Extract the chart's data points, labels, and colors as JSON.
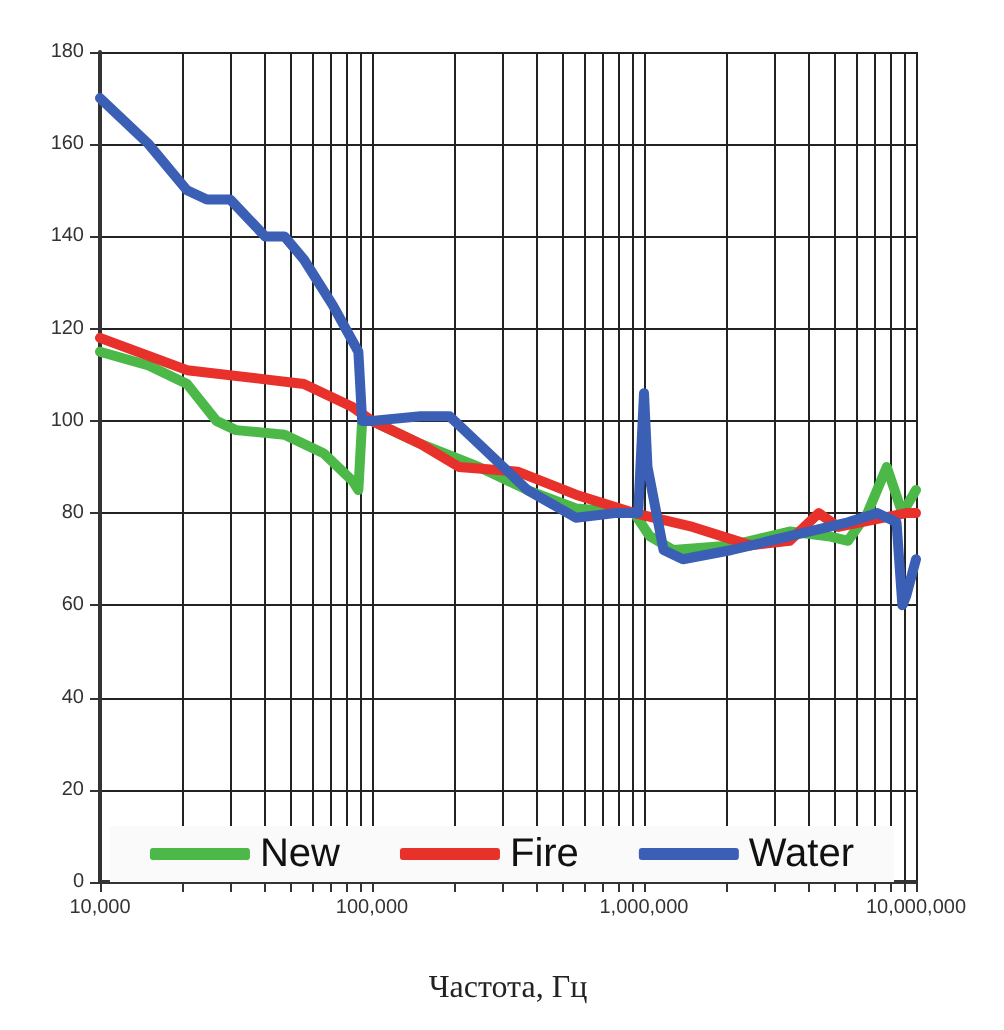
{
  "chart_data": {
    "type": "line",
    "xlabel": "Частота, Гц",
    "log": "x",
    "grid": true,
    "legend": "bottom",
    "marker": "none",
    "line_style": "solid",
    "xlim": [
      10000,
      10000000
    ],
    "ylim": [
      0,
      180
    ],
    "yticks": [
      0,
      20,
      40,
      60,
      80,
      100,
      120,
      140,
      160,
      180
    ],
    "xticks": [
      {
        "value": 10000,
        "label": "10,000"
      },
      {
        "value": 20000,
        "label": null
      },
      {
        "value": 30000,
        "label": null
      },
      {
        "value": 40000,
        "label": null
      },
      {
        "value": 50000,
        "label": null
      },
      {
        "value": 60000,
        "label": null
      },
      {
        "value": 70000,
        "label": null
      },
      {
        "value": 80000,
        "label": null
      },
      {
        "value": 90000,
        "label": null
      },
      {
        "value": 100000,
        "label": "100,000"
      },
      {
        "value": 200000,
        "label": null
      },
      {
        "value": 300000,
        "label": null
      },
      {
        "value": 400000,
        "label": null
      },
      {
        "value": 500000,
        "label": null
      },
      {
        "value": 600000,
        "label": null
      },
      {
        "value": 700000,
        "label": null
      },
      {
        "value": 800000,
        "label": null
      },
      {
        "value": 900000,
        "label": null
      },
      {
        "value": 1000000,
        "label": "1,000,000"
      },
      {
        "value": 2000000,
        "label": null
      },
      {
        "value": 3000000,
        "label": null
      },
      {
        "value": 4000000,
        "label": null
      },
      {
        "value": 5000000,
        "label": null
      },
      {
        "value": 6000000,
        "label": null
      },
      {
        "value": 7000000,
        "label": null
      },
      {
        "value": 8000000,
        "label": null
      },
      {
        "value": 9000000,
        "label": null
      },
      {
        "value": 10000000,
        "label": "10,000,000"
      }
    ],
    "series": [
      {
        "name": "New",
        "color": "#4cb848",
        "x": [
          10000,
          15100,
          20900,
          26800,
          31600,
          47700,
          66300,
          84800,
          89100,
          92000,
          100000,
          151000,
          247000,
          373000,
          562000,
          921000,
          1050000,
          1280000,
          2100000,
          3430000,
          4770000,
          5620000,
          6630000,
          7810000,
          8910000,
          10000000
        ],
        "values": [
          115,
          112,
          108,
          100,
          98,
          97,
          93,
          87,
          85,
          100,
          100,
          95,
          90,
          85,
          81,
          80,
          75,
          72,
          73,
          76,
          75,
          74,
          80,
          90,
          80,
          85
        ]
      },
      {
        "name": "Fire",
        "color": "#e8312a",
        "x": [
          10000,
          20900,
          40500,
          56200,
          84800,
          100000,
          151000,
          209000,
          343000,
          562000,
          921000,
          1510000,
          2470000,
          3430000,
          4390000,
          5180000,
          9200000,
          10000000
        ],
        "values": [
          118,
          111,
          109,
          108,
          103,
          100,
          95,
          90,
          89,
          84,
          80,
          77,
          73,
          74,
          80,
          77,
          80,
          80
        ]
      },
      {
        "name": "Water",
        "color": "#3a5fb5",
        "x": [
          10000,
          15100,
          20900,
          24700,
          30100,
          40500,
          47700,
          56200,
          71900,
          89100,
          92000,
          100000,
          151000,
          193000,
          247000,
          373000,
          562000,
          781000,
          952000,
          1000000,
          1030000,
          1180000,
          1390000,
          2100000,
          3430000,
          5620000,
          7200000,
          8480000,
          8910000,
          9200000,
          10000000
        ],
        "values": [
          170,
          160,
          150,
          148,
          148,
          140,
          140,
          135,
          125,
          115,
          100,
          100,
          101,
          101,
          95,
          85,
          79,
          80,
          80,
          106,
          90,
          72,
          70,
          72,
          75,
          78,
          80,
          78,
          60,
          62,
          70
        ]
      }
    ]
  }
}
